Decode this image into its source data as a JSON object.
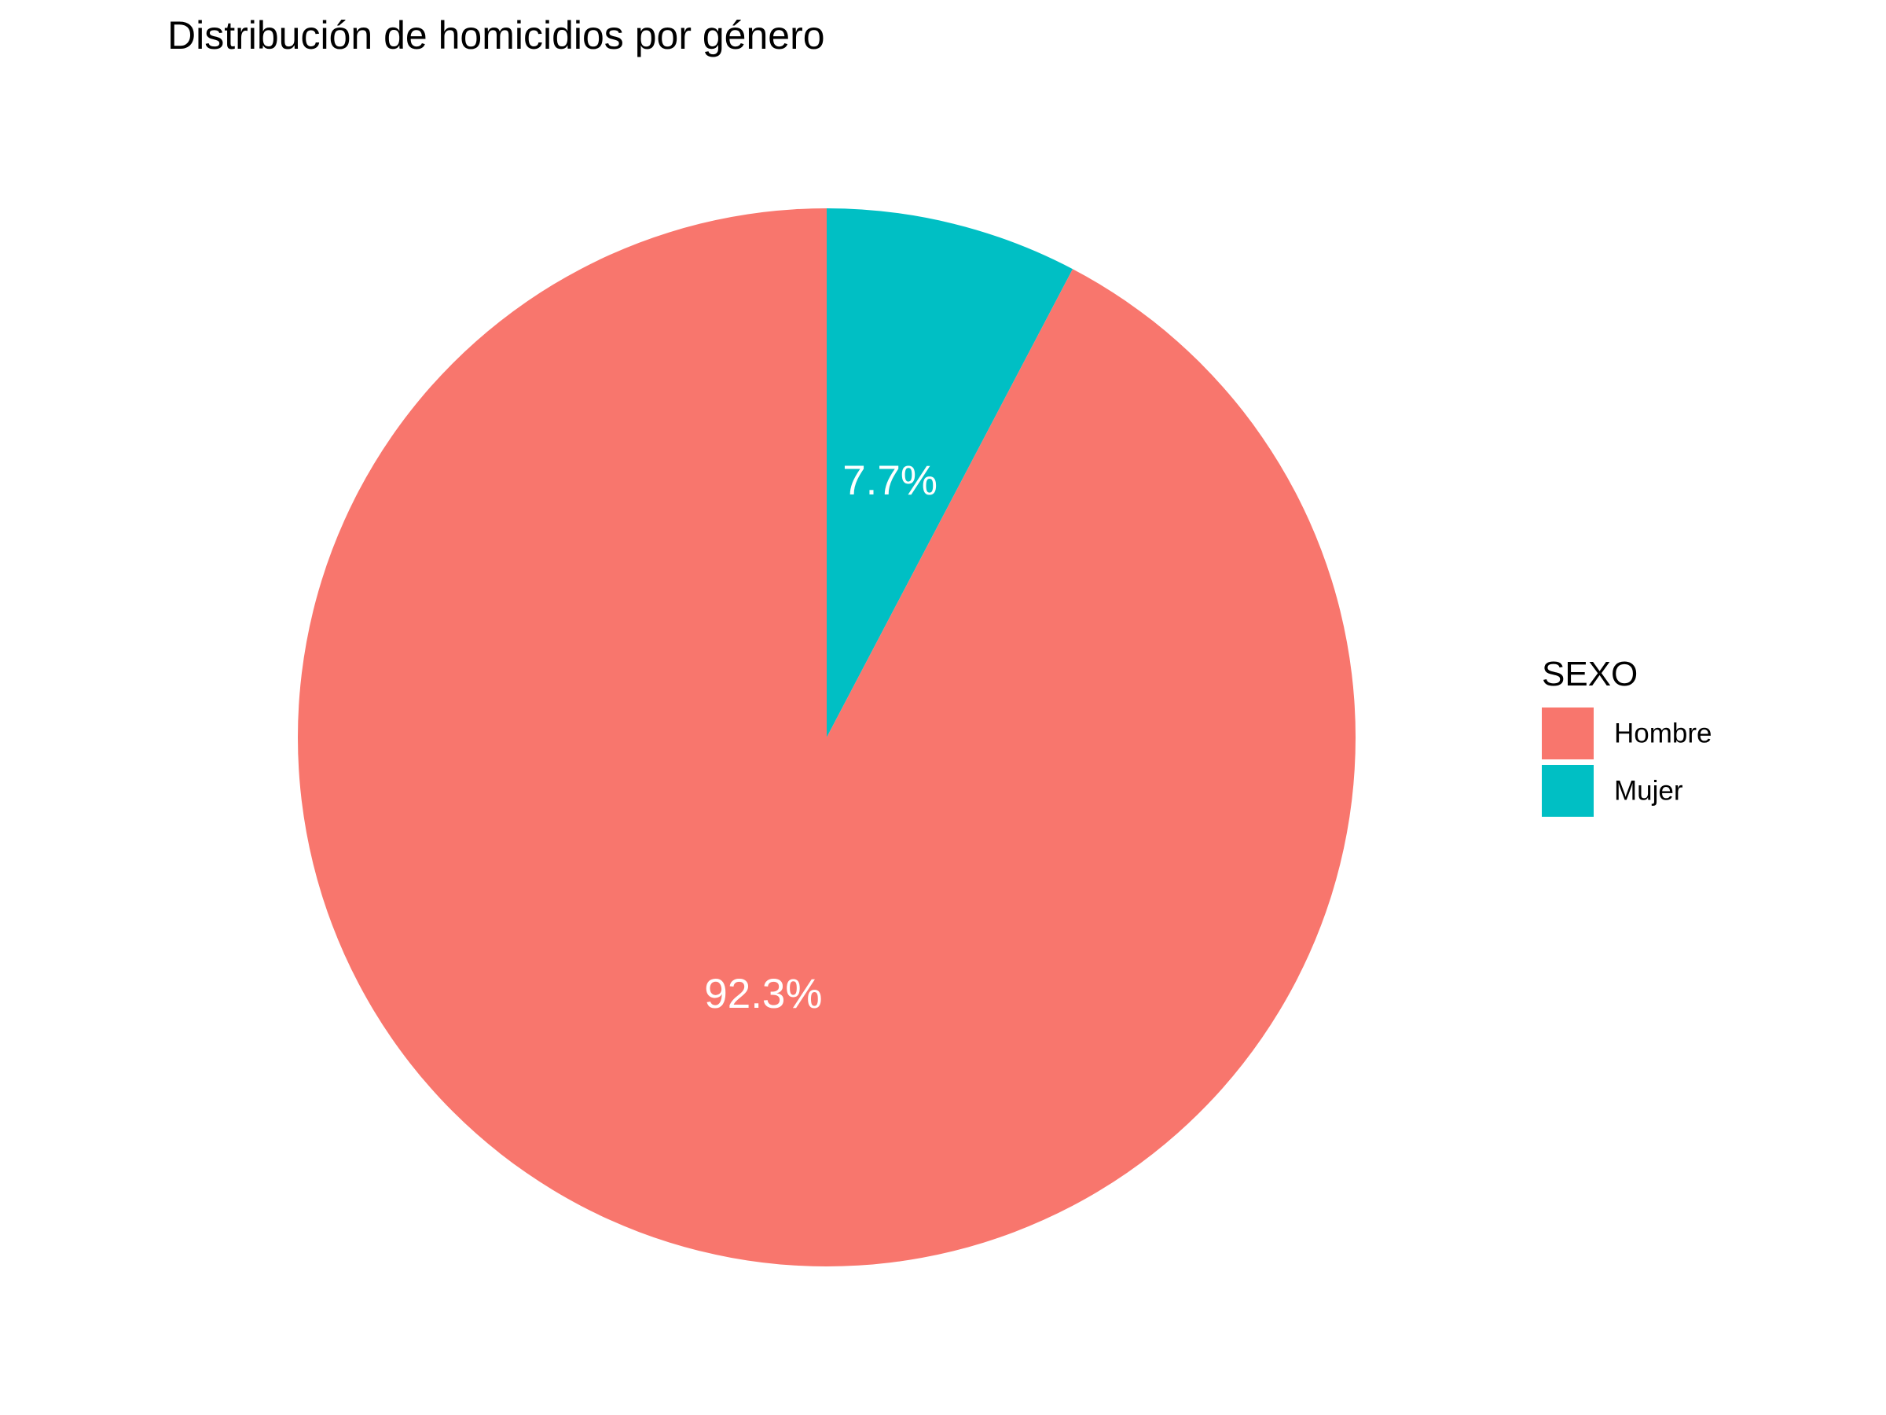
{
  "chart_data": {
    "type": "pie",
    "title": "Distribución de homicidios por género",
    "categories": [
      "Hombre",
      "Mujer"
    ],
    "values": [
      92.3,
      7.7
    ],
    "labels": [
      "92.3%",
      "7.7%"
    ],
    "colors": [
      "#F8766D",
      "#00BFC4"
    ],
    "legend": {
      "title": "SEXO",
      "position": "right"
    },
    "start": "12 o'clock, clockwise from Mujer"
  }
}
